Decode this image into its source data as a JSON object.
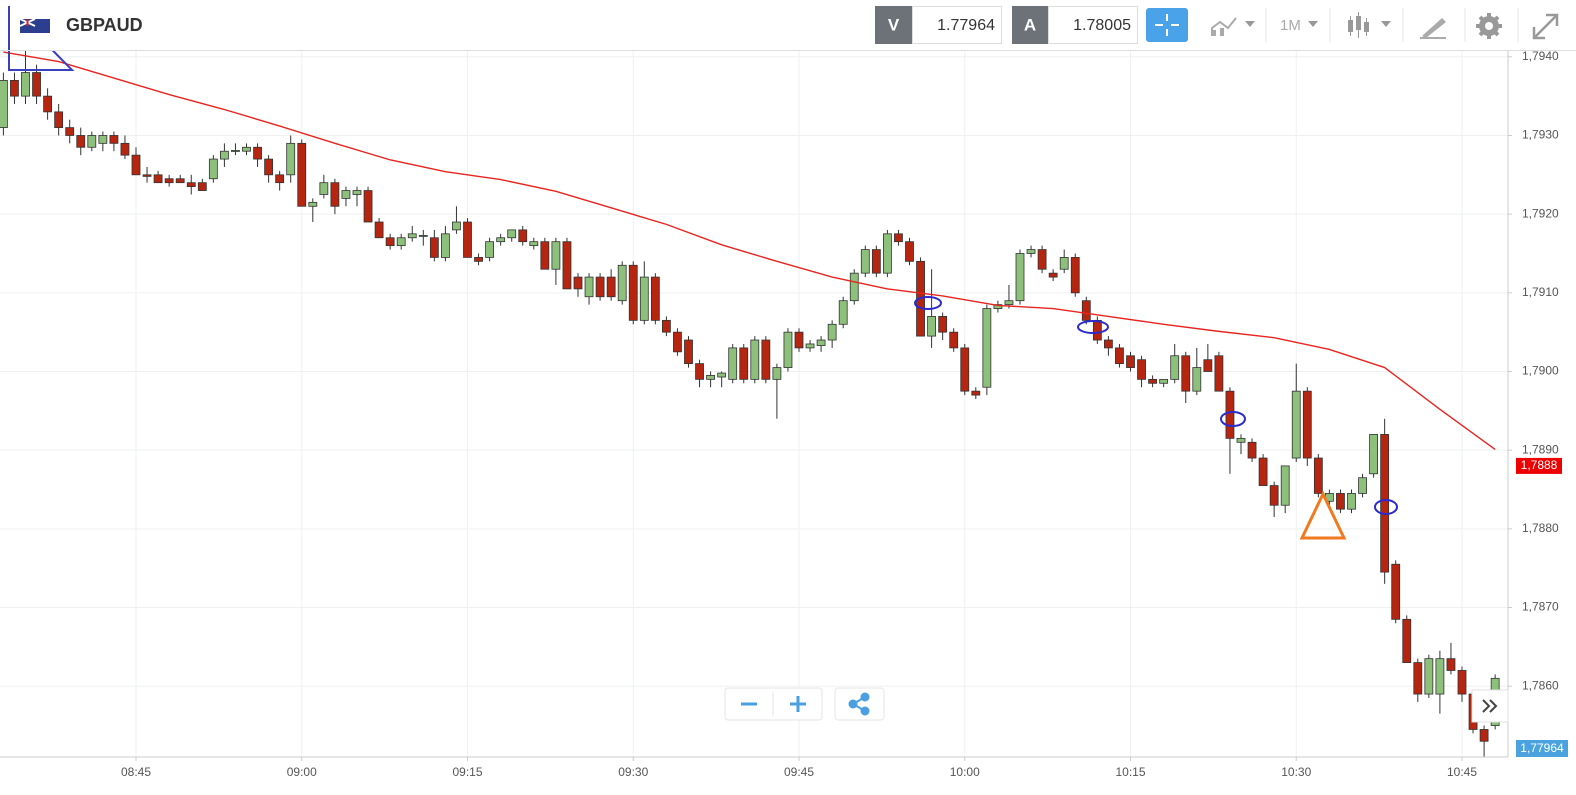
{
  "toolbar": {
    "symbol": "GBPAUD",
    "bid_label": "V",
    "bid": "1.77964",
    "ask_label": "A",
    "ask": "1.78005",
    "timeframe": "1M"
  },
  "chart_data": {
    "type": "candlestick",
    "up_color": "#8dc07b",
    "down_color": "#b52510",
    "grid": true,
    "ylim": [
      1.7851,
      1.79415
    ],
    "yticks": [
      {
        "value": 1.786,
        "label": "1,7860"
      },
      {
        "value": 1.787,
        "label": "1,7870"
      },
      {
        "value": 1.788,
        "label": "1,7880"
      },
      {
        "value": 1.789,
        "label": "1,7890"
      },
      {
        "value": 1.79,
        "label": "1,7900"
      },
      {
        "value": 1.791,
        "label": "1,7910"
      },
      {
        "value": 1.792,
        "label": "1,7920"
      },
      {
        "value": 1.793,
        "label": "1,7930"
      },
      {
        "value": 1.794,
        "label": "1,7940"
      }
    ],
    "xticks": [
      "08:45",
      "09:00",
      "09:15",
      "09:30",
      "09:45",
      "10:00",
      "10:15",
      "10:30",
      "10:45"
    ],
    "x": [
      "08:33",
      "08:34",
      "08:35",
      "08:36",
      "08:37",
      "08:38",
      "08:39",
      "08:40",
      "08:41",
      "08:42",
      "08:43",
      "08:44",
      "08:45",
      "08:46",
      "08:47",
      "08:48",
      "08:49",
      "08:50",
      "08:51",
      "08:52",
      "08:53",
      "08:54",
      "08:55",
      "08:56",
      "08:57",
      "08:58",
      "08:59",
      "09:00",
      "09:01",
      "09:02",
      "09:03",
      "09:04",
      "09:05",
      "09:06",
      "09:07",
      "09:08",
      "09:09",
      "09:10",
      "09:11",
      "09:12",
      "09:13",
      "09:14",
      "09:15",
      "09:16",
      "09:17",
      "09:18",
      "09:19",
      "09:20",
      "09:21",
      "09:22",
      "09:23",
      "09:24",
      "09:25",
      "09:26",
      "09:27",
      "09:28",
      "09:29",
      "09:30",
      "09:31",
      "09:32",
      "09:33",
      "09:34",
      "09:35",
      "09:36",
      "09:37",
      "09:38",
      "09:39",
      "09:40",
      "09:41",
      "09:42",
      "09:43",
      "09:44",
      "09:45",
      "09:46",
      "09:47",
      "09:48",
      "09:49",
      "09:50",
      "09:51",
      "09:52",
      "09:53",
      "09:54",
      "09:55",
      "09:56",
      "09:57",
      "09:58",
      "09:59",
      "10:00",
      "10:01",
      "10:02",
      "10:03",
      "10:04",
      "10:05",
      "10:06",
      "10:07",
      "10:08",
      "10:09",
      "10:10",
      "10:11",
      "10:12",
      "10:13",
      "10:14",
      "10:15",
      "10:16",
      "10:17",
      "10:18",
      "10:19",
      "10:20",
      "10:21",
      "10:22",
      "10:23",
      "10:24",
      "10:25",
      "10:26",
      "10:27",
      "10:28",
      "10:29",
      "10:30",
      "10:31",
      "10:32",
      "10:33",
      "10:34",
      "10:35",
      "10:36",
      "10:37",
      "10:38",
      "10:39",
      "10:40",
      "10:41",
      "10:42",
      "10:43",
      "10:44",
      "10:45",
      "10:46",
      "10:47",
      "10:48"
    ],
    "ohlc": [
      [
        1.7931,
        1.7938,
        1.793,
        1.7937
      ],
      [
        1.7937,
        1.7938,
        1.7934,
        1.7935
      ],
      [
        1.7935,
        1.7941,
        1.7934,
        1.7938
      ],
      [
        1.7938,
        1.7939,
        1.7934,
        1.7935
      ],
      [
        1.7935,
        1.7936,
        1.7932,
        1.7933
      ],
      [
        1.7933,
        1.7934,
        1.793,
        1.7931
      ],
      [
        1.7931,
        1.7932,
        1.7929,
        1.793
      ],
      [
        1.793,
        1.7931,
        1.79275,
        1.79285
      ],
      [
        1.79285,
        1.79305,
        1.7928,
        1.793
      ],
      [
        1.7929,
        1.79305,
        1.7928,
        1.793
      ],
      [
        1.793,
        1.79305,
        1.7928,
        1.7929
      ],
      [
        1.7929,
        1.793,
        1.7927,
        1.79275
      ],
      [
        1.79275,
        1.79285,
        1.7925,
        1.7925
      ],
      [
        1.7925,
        1.7926,
        1.7924,
        1.79248
      ],
      [
        1.7925,
        1.79255,
        1.7924,
        1.7924
      ],
      [
        1.79245,
        1.7925,
        1.79235,
        1.7924
      ],
      [
        1.79245,
        1.7925,
        1.7924,
        1.7924
      ],
      [
        1.7924,
        1.7925,
        1.79225,
        1.79235
      ],
      [
        1.7924,
        1.79245,
        1.7923,
        1.7923
      ],
      [
        1.79245,
        1.79275,
        1.7924,
        1.7927
      ],
      [
        1.7927,
        1.7929,
        1.7926,
        1.7928
      ],
      [
        1.7928,
        1.7929,
        1.79275,
        1.79281
      ],
      [
        1.7928,
        1.7929,
        1.79275,
        1.79285
      ],
      [
        1.79285,
        1.7929,
        1.7926,
        1.7927
      ],
      [
        1.7927,
        1.79275,
        1.7924,
        1.7925
      ],
      [
        1.7925,
        1.79255,
        1.7923,
        1.7924
      ],
      [
        1.7925,
        1.793,
        1.7924,
        1.7929
      ],
      [
        1.7929,
        1.79295,
        1.7921,
        1.7921
      ],
      [
        1.7921,
        1.7922,
        1.7919,
        1.79215
      ],
      [
        1.79225,
        1.7925,
        1.7922,
        1.7924
      ],
      [
        1.7924,
        1.79245,
        1.792,
        1.7921
      ],
      [
        1.7922,
        1.79235,
        1.7921,
        1.7923
      ],
      [
        1.79225,
        1.79235,
        1.7921,
        1.7923
      ],
      [
        1.7923,
        1.79235,
        1.7919,
        1.7919
      ],
      [
        1.7919,
        1.79195,
        1.7917,
        1.7917
      ],
      [
        1.7917,
        1.79175,
        1.79155,
        1.7916
      ],
      [
        1.7916,
        1.79175,
        1.79155,
        1.7917
      ],
      [
        1.7917,
        1.79185,
        1.79165,
        1.79175
      ],
      [
        1.79172,
        1.7918,
        1.7916,
        1.79173
      ],
      [
        1.7917,
        1.7918,
        1.7914,
        1.79145
      ],
      [
        1.79145,
        1.79185,
        1.7914,
        1.79175
      ],
      [
        1.7918,
        1.7921,
        1.79175,
        1.7919
      ],
      [
        1.7919,
        1.79195,
        1.79145,
        1.79145
      ],
      [
        1.79145,
        1.7915,
        1.79135,
        1.7914
      ],
      [
        1.79145,
        1.7917,
        1.7914,
        1.79165
      ],
      [
        1.79165,
        1.79175,
        1.7916,
        1.7917
      ],
      [
        1.7917,
        1.7918,
        1.79165,
        1.7918
      ],
      [
        1.7918,
        1.79185,
        1.7916,
        1.79165
      ],
      [
        1.7916,
        1.7917,
        1.79155,
        1.79165
      ],
      [
        1.79165,
        1.7917,
        1.7913,
        1.7913
      ],
      [
        1.7913,
        1.7917,
        1.7911,
        1.79165
      ],
      [
        1.79165,
        1.7917,
        1.79105,
        1.79105
      ],
      [
        1.7912,
        1.79125,
        1.79095,
        1.79105
      ],
      [
        1.79095,
        1.79125,
        1.79085,
        1.7912
      ],
      [
        1.7912,
        1.79125,
        1.7909,
        1.79095
      ],
      [
        1.7912,
        1.7913,
        1.7909,
        1.79095
      ],
      [
        1.7909,
        1.7914,
        1.79085,
        1.79135
      ],
      [
        1.79135,
        1.7914,
        1.7906,
        1.79065
      ],
      [
        1.79065,
        1.7914,
        1.7906,
        1.7912
      ],
      [
        1.7912,
        1.79125,
        1.7906,
        1.79065
      ],
      [
        1.79065,
        1.7907,
        1.79045,
        1.7905
      ],
      [
        1.7905,
        1.79055,
        1.7902,
        1.79025
      ],
      [
        1.7904,
        1.79045,
        1.79005,
        1.7901
      ],
      [
        1.7901,
        1.79015,
        1.7898,
        1.7899
      ],
      [
        1.7899,
        1.79,
        1.7898,
        1.78995
      ],
      [
        1.78993,
        1.79,
        1.7898,
        1.78998
      ],
      [
        1.7899,
        1.79035,
        1.78985,
        1.7903
      ],
      [
        1.7903,
        1.79035,
        1.78985,
        1.7899
      ],
      [
        1.7899,
        1.79045,
        1.78985,
        1.7904
      ],
      [
        1.7904,
        1.79045,
        1.78985,
        1.7899
      ],
      [
        1.7899,
        1.7901,
        1.7894,
        1.79005
      ],
      [
        1.79005,
        1.79055,
        1.79,
        1.7905
      ],
      [
        1.7905,
        1.79055,
        1.79025,
        1.7903
      ],
      [
        1.7903,
        1.7904,
        1.79025,
        1.79035
      ],
      [
        1.79033,
        1.79045,
        1.79025,
        1.7904
      ],
      [
        1.7904,
        1.79065,
        1.7903,
        1.7906
      ],
      [
        1.7906,
        1.79095,
        1.79055,
        1.7909
      ],
      [
        1.7909,
        1.7913,
        1.79085,
        1.79125
      ],
      [
        1.79125,
        1.7916,
        1.7912,
        1.79155
      ],
      [
        1.79155,
        1.7916,
        1.7912,
        1.79125
      ],
      [
        1.79125,
        1.7918,
        1.7912,
        1.79175
      ],
      [
        1.79175,
        1.7918,
        1.7916,
        1.79165
      ],
      [
        1.79165,
        1.7917,
        1.79135,
        1.7914
      ],
      [
        1.7914,
        1.79145,
        1.79045,
        1.79045
      ],
      [
        1.79045,
        1.7913,
        1.7903,
        1.7907
      ],
      [
        1.7907,
        1.79075,
        1.7904,
        1.7905
      ],
      [
        1.7905,
        1.79055,
        1.79025,
        1.7903
      ],
      [
        1.7903,
        1.79035,
        1.7897,
        1.78975
      ],
      [
        1.78975,
        1.7898,
        1.78965,
        1.7897
      ],
      [
        1.7898,
        1.79085,
        1.7897,
        1.7908
      ],
      [
        1.7908,
        1.7909,
        1.79075,
        1.79085
      ],
      [
        1.79085,
        1.7911,
        1.7908,
        1.7909
      ],
      [
        1.7909,
        1.79155,
        1.79085,
        1.7915
      ],
      [
        1.7915,
        1.7916,
        1.79145,
        1.79155
      ],
      [
        1.79155,
        1.7916,
        1.79125,
        1.7913
      ],
      [
        1.79125,
        1.7913,
        1.79115,
        1.7912
      ],
      [
        1.7913,
        1.79155,
        1.79125,
        1.79145
      ],
      [
        1.79145,
        1.7915,
        1.79095,
        1.791
      ],
      [
        1.7909,
        1.79095,
        1.7906,
        1.79065
      ],
      [
        1.79065,
        1.7907,
        1.79035,
        1.7904
      ],
      [
        1.7904,
        1.79045,
        1.7902,
        1.7903
      ],
      [
        1.7903,
        1.79035,
        1.79005,
        1.7901
      ],
      [
        1.7902,
        1.79025,
        1.79,
        1.79005
      ],
      [
        1.79015,
        1.7902,
        1.7898,
        1.7899
      ],
      [
        1.7899,
        1.78995,
        1.7898,
        1.78985
      ],
      [
        1.78985,
        1.7899,
        1.7898,
        1.7899
      ],
      [
        1.7899,
        1.79035,
        1.78985,
        1.7902
      ],
      [
        1.7902,
        1.79025,
        1.7896,
        1.78975
      ],
      [
        1.78975,
        1.7903,
        1.7897,
        1.79005
      ],
      [
        1.79015,
        1.79035,
        1.79,
        1.79
      ],
      [
        1.7902,
        1.79025,
        1.78975,
        1.78975
      ],
      [
        1.78975,
        1.7898,
        1.7887,
        1.78915
      ],
      [
        1.7891,
        1.7892,
        1.78895,
        1.78915
      ],
      [
        1.7891,
        1.78915,
        1.78885,
        1.7889
      ],
      [
        1.7889,
        1.78895,
        1.78855,
        1.78855
      ],
      [
        1.78855,
        1.7886,
        1.78815,
        1.7883
      ],
      [
        1.7883,
        1.7888,
        1.7882,
        1.7888
      ],
      [
        1.7889,
        1.7901,
        1.78885,
        1.78975
      ],
      [
        1.78975,
        1.7898,
        1.7888,
        1.7889
      ],
      [
        1.7889,
        1.78895,
        1.7884,
        1.78845
      ],
      [
        1.78835,
        1.7885,
        1.7883,
        1.78845
      ],
      [
        1.78845,
        1.7885,
        1.7882,
        1.78825
      ],
      [
        1.78825,
        1.7885,
        1.7882,
        1.78845
      ],
      [
        1.78845,
        1.7887,
        1.7884,
        1.78865
      ],
      [
        1.7887,
        1.7892,
        1.78865,
        1.7892
      ],
      [
        1.7892,
        1.7894,
        1.7873,
        1.78745
      ],
      [
        1.78755,
        1.7876,
        1.7868,
        1.78685
      ],
      [
        1.78685,
        1.7869,
        1.7863,
        1.7863
      ],
      [
        1.7863,
        1.78635,
        1.7858,
        1.7859
      ],
      [
        1.7859,
        1.7864,
        1.78585,
        1.78635
      ],
      [
        1.7859,
        1.78645,
        1.78565,
        1.78635
      ],
      [
        1.78635,
        1.78655,
        1.78615,
        1.7862
      ],
      [
        1.7862,
        1.78625,
        1.7858,
        1.7859
      ],
      [
        1.7859,
        1.78595,
        1.7854,
        1.78545
      ],
      [
        1.78545,
        1.7855,
        1.7851,
        1.7853
      ],
      [
        1.7855,
        1.78615,
        1.78545,
        1.7861
      ]
    ],
    "overlay": {
      "type": "line",
      "color": "#e8251f",
      "x": [
        "08:33",
        "08:38",
        "08:43",
        "08:48",
        "08:53",
        "08:58",
        "09:03",
        "09:08",
        "09:13",
        "09:18",
        "09:23",
        "09:28",
        "09:33",
        "09:38",
        "09:43",
        "09:48",
        "09:53",
        "09:58",
        "10:03",
        "10:08",
        "10:13",
        "10:18",
        "10:23",
        "10:28",
        "10:33",
        "10:38",
        "10:43",
        "10:48"
      ],
      "values": [
        1.79406,
        1.79394,
        1.79373,
        1.79352,
        1.79333,
        1.79312,
        1.7929,
        1.79269,
        1.79254,
        1.79244,
        1.79229,
        1.79208,
        1.79187,
        1.79161,
        1.7914,
        1.7912,
        1.79105,
        1.79096,
        1.79084,
        1.7908,
        1.7907,
        1.7906,
        1.79051,
        1.79043,
        1.79028,
        1.79005,
        1.78952,
        1.78901
      ]
    },
    "price_label": {
      "value": 1.7888,
      "label": "1,7888",
      "color": "#ee0000"
    },
    "last_price_label": "1,77964"
  }
}
